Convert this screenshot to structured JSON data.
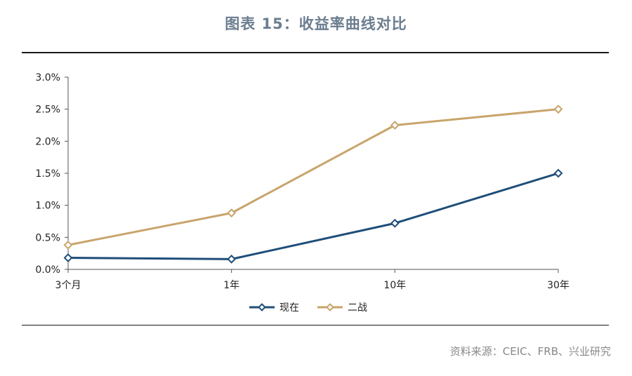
{
  "header": {
    "title": "图表 15：收益率曲线对比"
  },
  "footer": {
    "source": "资料来源：CEIC、FRB、兴业研究"
  },
  "chart_data": {
    "type": "line",
    "title": "图表 15：收益率曲线对比",
    "xlabel": "",
    "ylabel": "",
    "categories": [
      "3个月",
      "1年",
      "10年",
      "30年"
    ],
    "y_ticks": [
      "0.0%",
      "0.5%",
      "1.0%",
      "1.5%",
      "2.0%",
      "2.5%",
      "3.0%"
    ],
    "ylim": [
      0,
      3.0
    ],
    "grid": false,
    "legend_position": "bottom",
    "series": [
      {
        "name": "现在",
        "color": "#1f4e79",
        "marker": "diamond",
        "values": [
          0.18,
          0.16,
          0.72,
          1.5
        ]
      },
      {
        "name": "二战",
        "color": "#c9a46b",
        "marker": "diamond",
        "values": [
          0.38,
          0.88,
          2.25,
          2.5
        ]
      }
    ]
  }
}
